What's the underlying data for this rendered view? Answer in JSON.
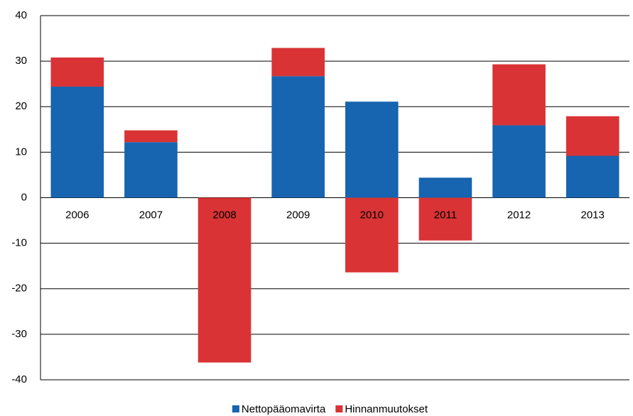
{
  "chart_data": {
    "type": "stacked-bar",
    "categories": [
      "2006",
      "2007",
      "2008",
      "2009",
      "2010",
      "2011",
      "2012",
      "2013"
    ],
    "series": [
      {
        "name": "Nettopääomavirta",
        "color": "#1764b0",
        "values": [
          24.4,
          12.2,
          0,
          26.7,
          21.1,
          4.4,
          15.9,
          9.2
        ]
      },
      {
        "name": "Hinnanmuutokset",
        "color": "#d93335",
        "values": [
          6.4,
          2.6,
          -36.2,
          6.2,
          -16.4,
          -9.4,
          13.4,
          8.7
        ]
      }
    ],
    "ylim": [
      -40,
      40
    ],
    "yticks": [
      -40,
      -30,
      -20,
      -10,
      0,
      10,
      20,
      30,
      40
    ],
    "grid": true,
    "legend": "bottom"
  }
}
